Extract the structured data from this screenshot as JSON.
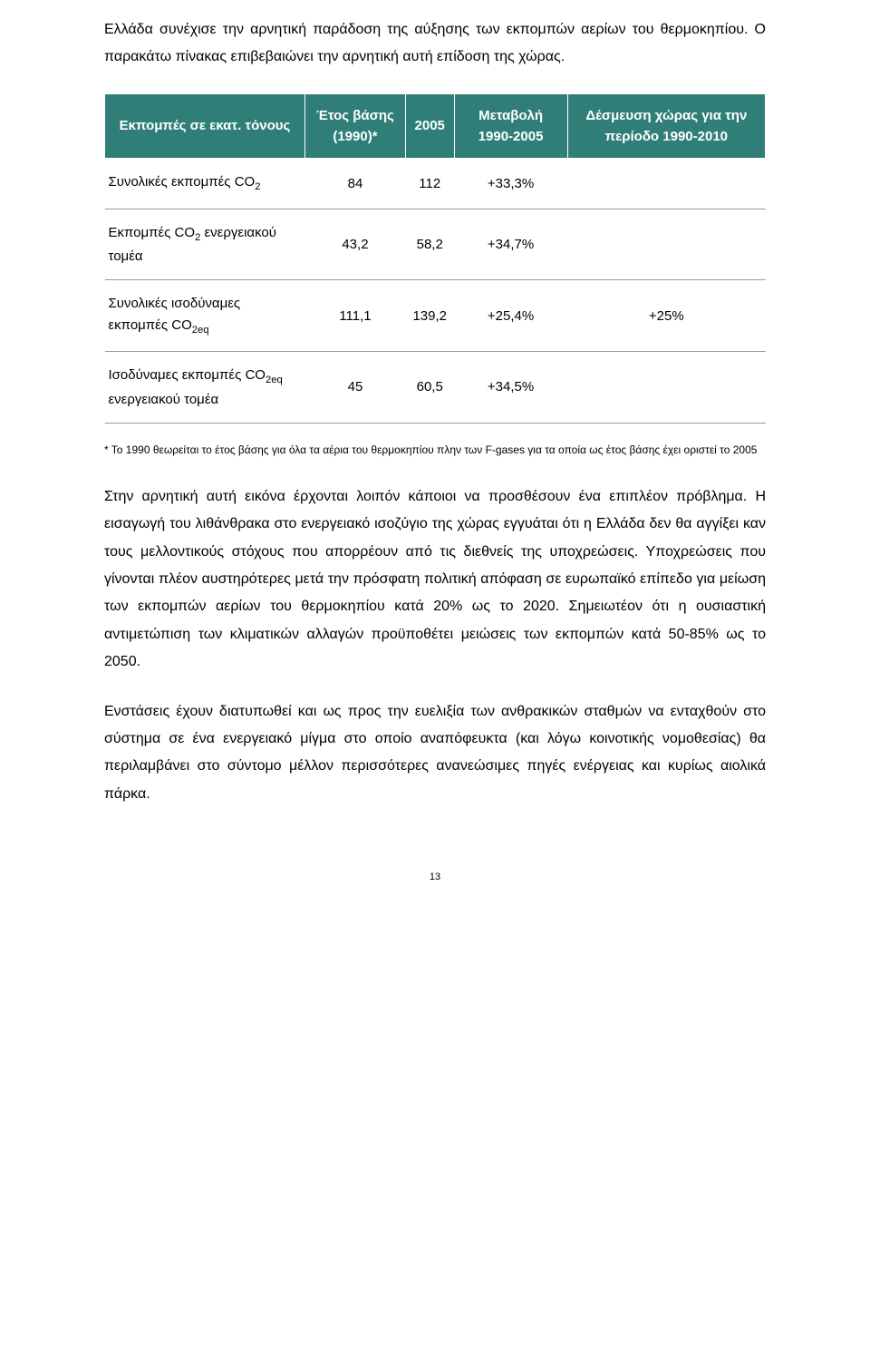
{
  "intro_paragraph": "Ελλάδα συνέχισε την αρνητική παράδοση της αύξησης των εκπομπών αερίων του θερμοκηπίου. Ο παρακάτω πίνακας επιβεβαιώνει την αρνητική αυτή επίδοση της χώρας.",
  "table": {
    "header_bg": "#2f7f78",
    "header_fg": "#ffffff",
    "border_color": "#9a9a9a",
    "columns": {
      "c0": "Εκπομπές σε εκατ. τόνους",
      "c1": "Έτος βάσης (1990)*",
      "c2": "2005",
      "c3": "Μεταβολή 1990-2005",
      "c4": "Δέσμευση χώρας για την περίοδο 1990-2010"
    },
    "rows": [
      {
        "label_html": "Συνολικές εκπομπές CO<sub>2</sub>",
        "base": "84",
        "y2005": "112",
        "change": "+33,3%",
        "commit": ""
      },
      {
        "label_html": "Εκπομπές CO<sub>2</sub> ενεργειακού τομέα",
        "base": "43,2",
        "y2005": "58,2",
        "change": "+34,7%",
        "commit": ""
      },
      {
        "label_html": "Συνολικές ισοδύναμες εκπομπές CO<sub>2eq</sub>",
        "base": "111,1",
        "y2005": "139,2",
        "change": "+25,4%",
        "commit": "+25%"
      },
      {
        "label_html": "Ισοδύναμες εκπομπές CO<sub>2eq</sub> ενεργειακού τομέα",
        "base": "45",
        "y2005": "60,5",
        "change": "+34,5%",
        "commit": ""
      }
    ]
  },
  "footnote": "* Το 1990 θεωρείται το έτος βάσης για όλα τα αέρια του θερμοκηπίου πλην των F-gases για τα οποία ως έτος βάσης έχει οριστεί το 2005",
  "paragraph_2": "Στην αρνητική αυτή εικόνα έρχονται λοιπόν κάποιοι να προσθέσουν ένα επιπλέον πρόβλημα. Η εισαγωγή του λιθάνθρακα στο ενεργειακό ισοζύγιο της χώρας εγγυάται ότι η Ελλάδα δεν θα αγγίξει καν τους μελλοντικούς στόχους που απορρέουν από τις διεθνείς της υποχρεώσεις. Υποχρεώσεις που γίνονται πλέον αυστηρότερες μετά την πρόσφατη πολιτική απόφαση σε ευρωπαϊκό επίπεδο για μείωση των εκπομπών αερίων του θερμοκηπίου κατά 20% ως το 2020. Σημειωτέον ότι η ουσιαστική αντιμετώπιση των κλιματικών αλλαγών προϋποθέτει μειώσεις των εκπομπών κατά 50-85% ως το 2050.",
  "paragraph_3": "Ενστάσεις έχουν διατυπωθεί και ως προς την ευελιξία των ανθρακικών σταθμών να ενταχθούν στο σύστημα σε ένα ενεργειακό μίγμα στο οποίο αναπόφευκτα (και λόγω κοινοτικής νομοθεσίας) θα περιλαμβάνει στο σύντομο μέλλον περισσότερες ανανεώσιμες πηγές ενέργειας και κυρίως αιολικά πάρκα.",
  "page_number": "13"
}
